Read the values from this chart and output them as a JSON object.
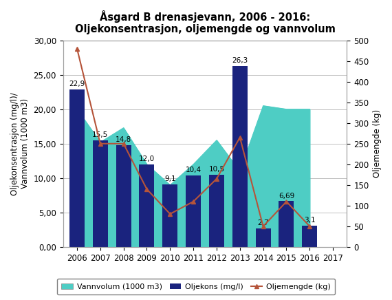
{
  "title_line1": "Åsgard B drenasjevann, 2006 - 2016:",
  "title_line2": "Oljekonsentrasjon, oljemengde og vannvolum",
  "years": [
    2006,
    2007,
    2008,
    2009,
    2010,
    2011,
    2012,
    2013,
    2014,
    2015,
    2016
  ],
  "x_tick_labels": [
    "2006",
    "2007",
    "2008",
    "2009",
    "2010",
    "2011",
    "2012",
    "2013",
    "2014",
    "2015",
    "2016",
    "2017"
  ],
  "oljekons": [
    22.9,
    15.5,
    14.8,
    12.0,
    9.1,
    10.4,
    10.5,
    26.3,
    2.7,
    6.69,
    3.1
  ],
  "oljekons_labels": [
    "22,9",
    "15,5",
    "14,8",
    "12,0",
    "9,1",
    "10,4",
    "10,5",
    "26,3",
    "2,7",
    "6,69",
    "3,1"
  ],
  "vannvolum": [
    20.0,
    15.2,
    17.3,
    12.0,
    9.0,
    12.0,
    15.5,
    11.0,
    20.5,
    20.0,
    20.0
  ],
  "oljemengde": [
    480,
    250,
    250,
    140,
    80,
    110,
    165,
    265,
    50,
    110,
    50
  ],
  "ylabel_left": "Oljekonsentrasjon (mg/l)/\nVannvolum (1000 m3)",
  "ylabel_right": "Oljemengde (kg)",
  "ylim_left": [
    0,
    30
  ],
  "ylim_right": [
    0,
    500
  ],
  "yticks_left": [
    0,
    5.0,
    10.0,
    15.0,
    20.0,
    25.0,
    30.0
  ],
  "ytick_labels_left": [
    "0,00",
    "5,00",
    "10,00",
    "15,00",
    "20,00",
    "25,00",
    "30,00"
  ],
  "yticks_right": [
    0,
    50,
    100,
    150,
    200,
    250,
    300,
    350,
    400,
    450,
    500
  ],
  "bar_color": "#1A237E",
  "area_color": "#4ECDC4",
  "line_color": "#B5543A",
  "marker_color": "#B5543A",
  "background_color": "#FFFFFF",
  "plot_bg_color": "#FFFFFF",
  "border_color": "#A0A0A0",
  "legend_vannvolum": "Vannvolum (1000 m3)",
  "legend_oljekons": "Oljekons (mg/l)",
  "legend_oljemengde": "Oljemengde (kg)",
  "bar_width": 0.65,
  "title_fontsize": 10.5,
  "axis_fontsize": 8.5,
  "tick_fontsize": 8.5,
  "label_fontsize": 7.5
}
